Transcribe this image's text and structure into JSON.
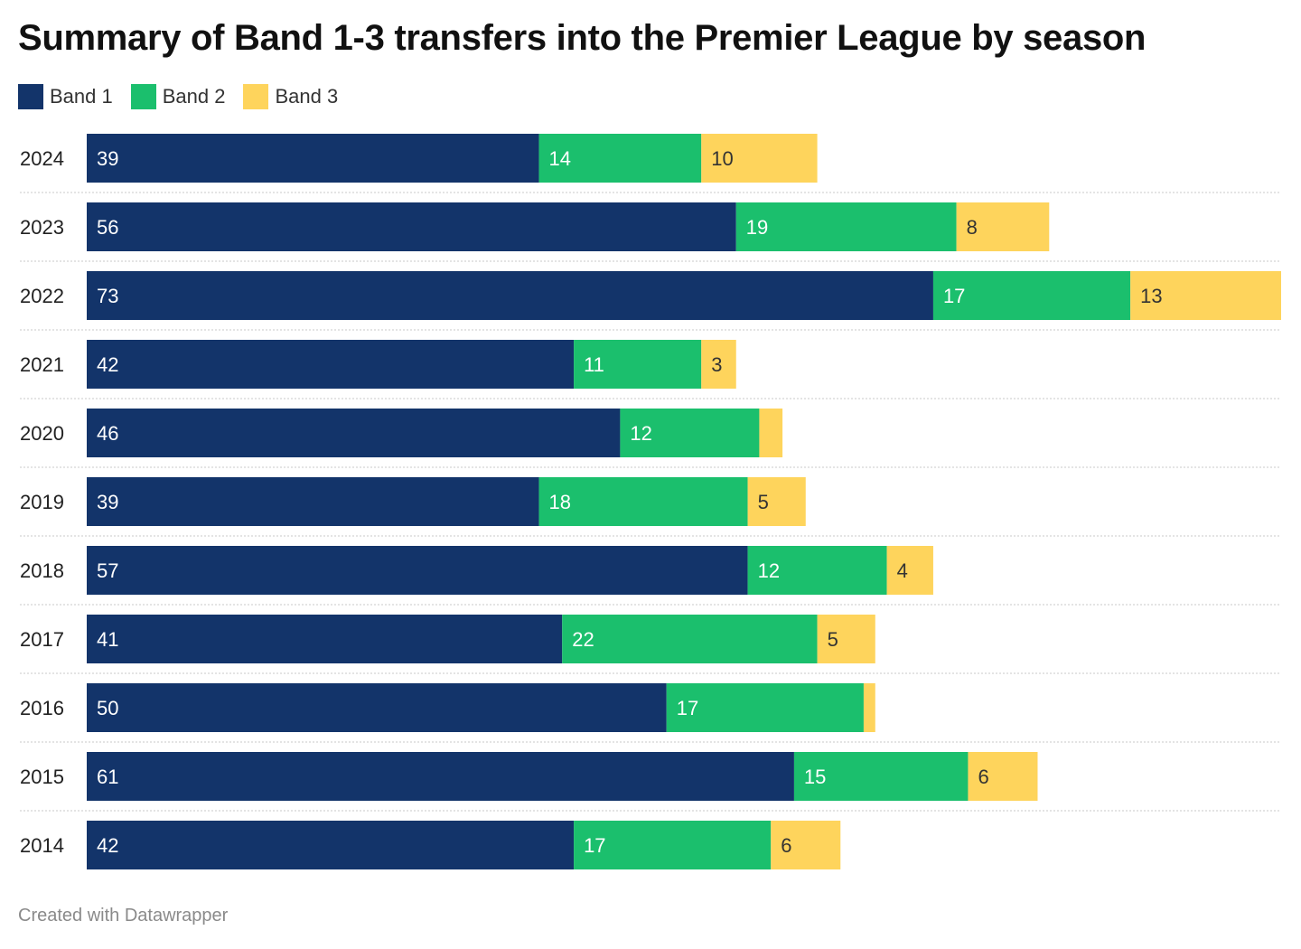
{
  "chart_data": {
    "type": "bar",
    "orientation": "horizontal",
    "stacked": true,
    "title": "Summary of Band 1-3 transfers into the Premier League by season",
    "categories": [
      "2024",
      "2023",
      "2022",
      "2021",
      "2020",
      "2019",
      "2018",
      "2017",
      "2016",
      "2015",
      "2014"
    ],
    "series": [
      {
        "name": "Band 1",
        "color": "#13346a",
        "label_color": "#ffffff",
        "values": [
          39,
          56,
          73,
          42,
          46,
          39,
          57,
          41,
          50,
          61,
          42
        ],
        "labels": [
          "39",
          "56",
          "73",
          "42",
          "46",
          "39",
          "57",
          "41",
          "50",
          "61",
          "42"
        ]
      },
      {
        "name": "Band 2",
        "color": "#1bbf6d",
        "label_color": "#ffffff",
        "values": [
          14,
          19,
          17,
          11,
          12,
          18,
          12,
          22,
          17,
          15,
          17
        ],
        "labels": [
          "14",
          "19",
          "17",
          "11",
          "12",
          "18",
          "12",
          "22",
          "17",
          "15",
          "17"
        ]
      },
      {
        "name": "Band 3",
        "color": "#fed45c",
        "label_color": "#333333",
        "values": [
          10,
          8,
          13,
          3,
          2,
          5,
          4,
          5,
          1,
          6,
          6
        ],
        "labels": [
          "10",
          "8",
          "13",
          "3",
          "",
          "5",
          "4",
          "5",
          "",
          "6",
          "6"
        ]
      }
    ],
    "xlim": [
      0,
      103
    ],
    "grid": false,
    "legend": "top-left"
  },
  "footer": {
    "credit": "Created with Datawrapper"
  }
}
